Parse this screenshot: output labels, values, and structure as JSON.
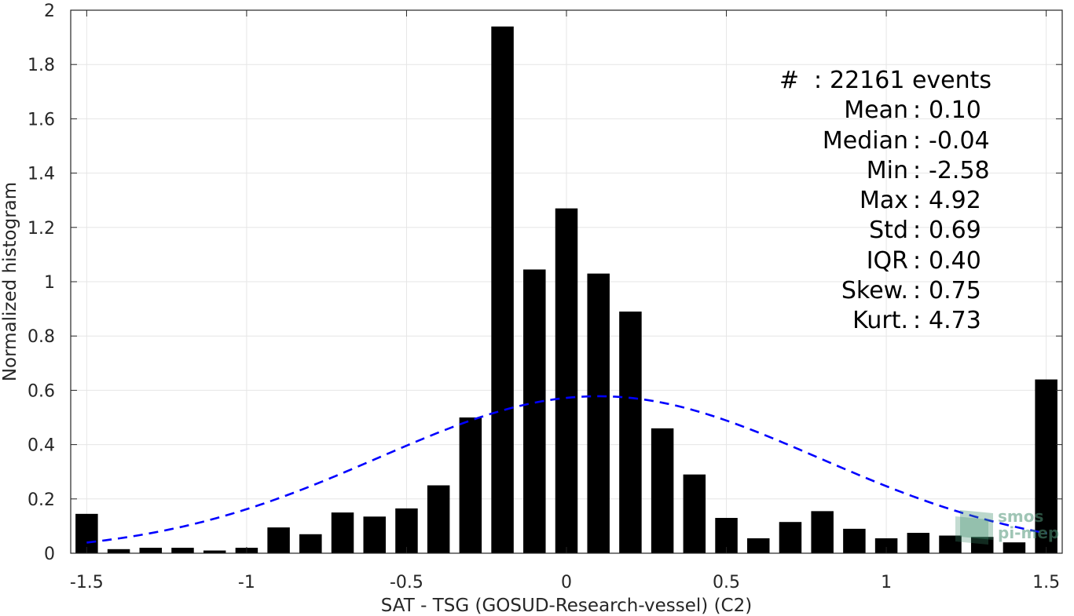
{
  "chart_data": {
    "type": "bar",
    "xlabel": "SAT - TSG (GOSUD-Research-vessel) (C2)",
    "ylabel": "Normalized histogram",
    "xlim": [
      -1.55,
      1.55
    ],
    "ylim": [
      0,
      2
    ],
    "xticks": [
      -1.5,
      -1,
      -0.5,
      0,
      0.5,
      1,
      1.5
    ],
    "xtick_labels": [
      "-1.5",
      "-1",
      "-0.5",
      "0",
      "0.5",
      "1",
      "1.5"
    ],
    "yticks": [
      0,
      0.2,
      0.4,
      0.6,
      0.8,
      1,
      1.2,
      1.4,
      1.6,
      1.8,
      2
    ],
    "ytick_labels": [
      "0",
      "0.2",
      "0.4",
      "0.6",
      "0.8",
      "1",
      "1.2",
      "1.4",
      "1.6",
      "1.8",
      "2"
    ],
    "grid": true,
    "bar_color": "#000000",
    "bar_width": 0.07,
    "x": [
      -1.5,
      -1.4,
      -1.3,
      -1.2,
      -1.1,
      -1.0,
      -0.9,
      -0.8,
      -0.7,
      -0.6,
      -0.5,
      -0.4,
      -0.3,
      -0.2,
      -0.1,
      0.0,
      0.1,
      0.2,
      0.3,
      0.4,
      0.5,
      0.6,
      0.7,
      0.8,
      0.9,
      1.0,
      1.1,
      1.2,
      1.3,
      1.4,
      1.5
    ],
    "values": [
      0.145,
      0.015,
      0.02,
      0.02,
      0.01,
      0.02,
      0.095,
      0.07,
      0.15,
      0.135,
      0.165,
      0.25,
      0.5,
      1.94,
      1.045,
      1.27,
      1.03,
      0.89,
      0.46,
      0.29,
      0.13,
      0.055,
      0.115,
      0.155,
      0.09,
      0.055,
      0.075,
      0.065,
      0.06,
      0.04,
      0.64
    ],
    "fit_curve": {
      "type": "normal",
      "mean": 0.1,
      "std": 0.69,
      "style": "dashed",
      "color": "#0000ff"
    }
  },
  "stats": [
    {
      "key": "#",
      "sep": ":",
      "value": "22161 events"
    },
    {
      "key": "Mean",
      "sep": ":",
      "value": "0.10"
    },
    {
      "key": "Median",
      "sep": ":",
      "value": "-0.04"
    },
    {
      "key": "Min",
      "sep": ":",
      "value": "-2.58"
    },
    {
      "key": "Max",
      "sep": ":",
      "value": "4.92"
    },
    {
      "key": "Std",
      "sep": ":",
      "value": "0.69"
    },
    {
      "key": "IQR",
      "sep": ":",
      "value": "0.40"
    },
    {
      "key": "Skew.",
      "sep": ":",
      "value": "0.75"
    },
    {
      "key": "Kurt.",
      "sep": ":",
      "value": "4.73"
    }
  ],
  "logo": {
    "line1": "smos",
    "line2": "pi-mep",
    "color": "#3c8c6a"
  }
}
